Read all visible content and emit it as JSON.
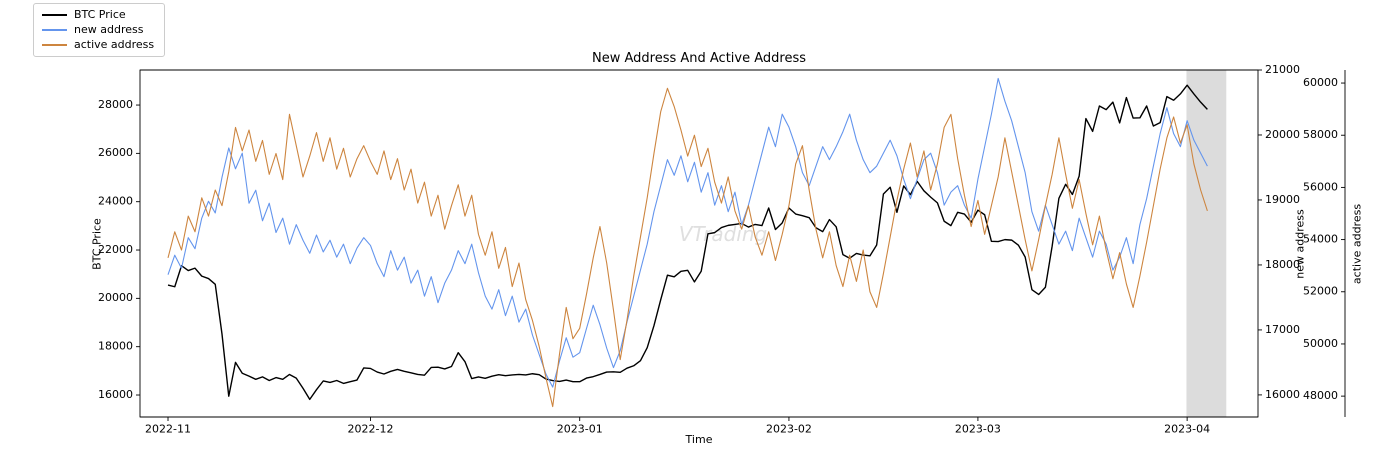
{
  "legend": {
    "items": [
      {
        "label": "BTC Price",
        "color": "#000000"
      },
      {
        "label": "new address",
        "color": "#6495ed"
      },
      {
        "label": "active address",
        "color": "#cd853f"
      }
    ]
  },
  "chart_data": {
    "type": "line",
    "title": "New Address And Active Address",
    "xlabel": "Time",
    "ylabel_left": "BTC Price",
    "ylabel_right1": "new address",
    "ylabel_right2": "active address",
    "watermark": "VTrading",
    "x_unit": "days since 2022-11-01",
    "x_start": 0,
    "x_step": 1,
    "x_ticks": [
      {
        "day": 0,
        "label": "2022-11"
      },
      {
        "day": 30,
        "label": "2022-12"
      },
      {
        "day": 61,
        "label": "2023-01"
      },
      {
        "day": 92,
        "label": "2023-02"
      },
      {
        "day": 120,
        "label": "2023-03"
      },
      {
        "day": 151,
        "label": "2023-04"
      }
    ],
    "axes": {
      "x_range": [
        -4.15,
        161.5
      ],
      "btc": {
        "range": [
          15090,
          29450
        ],
        "ticks": [
          16000,
          18000,
          20000,
          22000,
          24000,
          26000,
          28000
        ]
      },
      "new_address": {
        "range": [
          15660,
          21000
        ],
        "ticks": [
          16000,
          17000,
          18000,
          19000,
          20000,
          21000
        ]
      },
      "active_address": {
        "range": [
          47200,
          60500
        ],
        "ticks": [
          48000,
          50000,
          52000,
          54000,
          56000,
          58000,
          60000
        ]
      }
    },
    "highlight_band": {
      "x_from": 150.9,
      "x_to": 156.8,
      "color": "#dcdcdc"
    },
    "series": [
      {
        "name": "BTC Price",
        "axis": "btc",
        "color": "#000000",
        "values": [
          20550,
          20480,
          21350,
          21150,
          21250,
          20920,
          20820,
          20580,
          18520,
          15950,
          17350,
          16900,
          16780,
          16650,
          16750,
          16600,
          16720,
          16650,
          16850,
          16700,
          16280,
          15820,
          16220,
          16580,
          16520,
          16600,
          16480,
          16550,
          16620,
          17120,
          17100,
          16950,
          16870,
          16980,
          17060,
          16980,
          16920,
          16850,
          16820,
          17140,
          17150,
          17080,
          17180,
          17750,
          17380,
          16680,
          16750,
          16690,
          16780,
          16840,
          16800,
          16830,
          16850,
          16830,
          16880,
          16840,
          16660,
          16600,
          16560,
          16620,
          16550,
          16550,
          16700,
          16760,
          16850,
          16950,
          16960,
          16940,
          17110,
          17210,
          17420,
          17960,
          18870,
          19940,
          20960,
          20890,
          21120,
          21160,
          20680,
          21120,
          22670,
          22720,
          22930,
          23020,
          23060,
          23100,
          22950,
          23060,
          23010,
          23740,
          22850,
          23120,
          23740,
          23490,
          23420,
          23340,
          22920,
          22760,
          23260,
          22960,
          21810,
          21660,
          21860,
          21790,
          21760,
          22210,
          24320,
          24600,
          23560,
          24650,
          24290,
          24840,
          24450,
          24190,
          23950,
          23190,
          23010,
          23560,
          23490,
          23150,
          23650,
          23460,
          22360,
          22350,
          22430,
          22410,
          22200,
          21710,
          20360,
          20160,
          20460,
          22160,
          24140,
          24720,
          24300,
          25060,
          27440,
          26910,
          27960,
          27810,
          28120,
          27260,
          28310,
          27460,
          27470,
          27960,
          27130,
          27270,
          28350,
          28200,
          28460,
          28820,
          28460,
          28120,
          27820
        ]
      },
      {
        "name": "new address",
        "axis": "new_address",
        "color": "#6495ed",
        "values": [
          17850,
          18150,
          17950,
          18420,
          18250,
          18720,
          18980,
          18800,
          19350,
          19800,
          19480,
          19720,
          18950,
          19150,
          18680,
          18950,
          18500,
          18720,
          18320,
          18620,
          18380,
          18180,
          18460,
          18200,
          18380,
          18120,
          18320,
          18020,
          18260,
          18420,
          18300,
          18020,
          17820,
          18220,
          17920,
          18120,
          17720,
          17920,
          17520,
          17820,
          17420,
          17720,
          17920,
          18220,
          18020,
          18320,
          17880,
          17520,
          17320,
          17620,
          17220,
          17520,
          17120,
          17320,
          16920,
          16620,
          16320,
          16120,
          16520,
          16880,
          16580,
          16650,
          17020,
          17380,
          17080,
          16720,
          16420,
          16680,
          17120,
          17520,
          17920,
          18320,
          18820,
          19220,
          19620,
          19380,
          19680,
          19280,
          19580,
          19120,
          19420,
          18920,
          19220,
          18820,
          19120,
          18620,
          18920,
          19320,
          19720,
          20120,
          19820,
          20320,
          20120,
          19820,
          19420,
          19220,
          19520,
          19820,
          19620,
          19820,
          20050,
          20320,
          19920,
          19620,
          19420,
          19520,
          19720,
          19920,
          19680,
          19320,
          19020,
          19320,
          19620,
          19720,
          19420,
          18920,
          19120,
          19220,
          18920,
          18720,
          19320,
          19820,
          20320,
          20870,
          20520,
          20220,
          19820,
          19420,
          18820,
          18520,
          18920,
          18620,
          18320,
          18520,
          18220,
          18720,
          18420,
          18120,
          18520,
          18320,
          17920,
          18120,
          18420,
          18020,
          18620,
          19020,
          19520,
          20020,
          20420,
          20020,
          19820,
          20220,
          19920,
          19720,
          19520
        ]
      },
      {
        "name": "active address",
        "axis": "active_address",
        "color": "#cd853f",
        "values": [
          53300,
          54300,
          53600,
          54900,
          54300,
          55600,
          54900,
          55900,
          55300,
          56600,
          58300,
          57400,
          58200,
          57000,
          57800,
          56500,
          57300,
          56300,
          58800,
          57600,
          56400,
          57200,
          58100,
          57000,
          57900,
          56700,
          57500,
          56400,
          57100,
          57600,
          57000,
          56500,
          57400,
          56300,
          57100,
          55900,
          56700,
          55400,
          56200,
          54900,
          55700,
          54400,
          55300,
          56100,
          54900,
          55700,
          54200,
          53400,
          54300,
          52900,
          53700,
          52200,
          53100,
          51700,
          50900,
          49900,
          48700,
          47600,
          49600,
          51400,
          50200,
          50600,
          51900,
          53300,
          54500,
          53100,
          51300,
          49400,
          50900,
          52600,
          54100,
          55600,
          57300,
          58900,
          59800,
          59100,
          58200,
          57200,
          58000,
          56800,
          57500,
          56200,
          55400,
          56400,
          55100,
          54400,
          55300,
          54100,
          53400,
          54300,
          53200,
          54200,
          55300,
          56900,
          57600,
          55900,
          54400,
          53300,
          54300,
          53000,
          52200,
          53400,
          52400,
          53600,
          52000,
          51400,
          52700,
          54100,
          55500,
          56700,
          57700,
          56400,
          57400,
          55900,
          56900,
          58300,
          58800,
          57100,
          55700,
          54500,
          55500,
          54200,
          55300,
          56400,
          57900,
          56600,
          55300,
          54000,
          52800,
          54000,
          55300,
          56500,
          57900,
          56500,
          55200,
          56300,
          55000,
          53800,
          54900,
          53600,
          52500,
          53500,
          52300,
          51400,
          52600,
          53900,
          55300,
          56700,
          57900,
          58700,
          57700,
          58400,
          56900,
          55900,
          55100
        ]
      }
    ]
  }
}
